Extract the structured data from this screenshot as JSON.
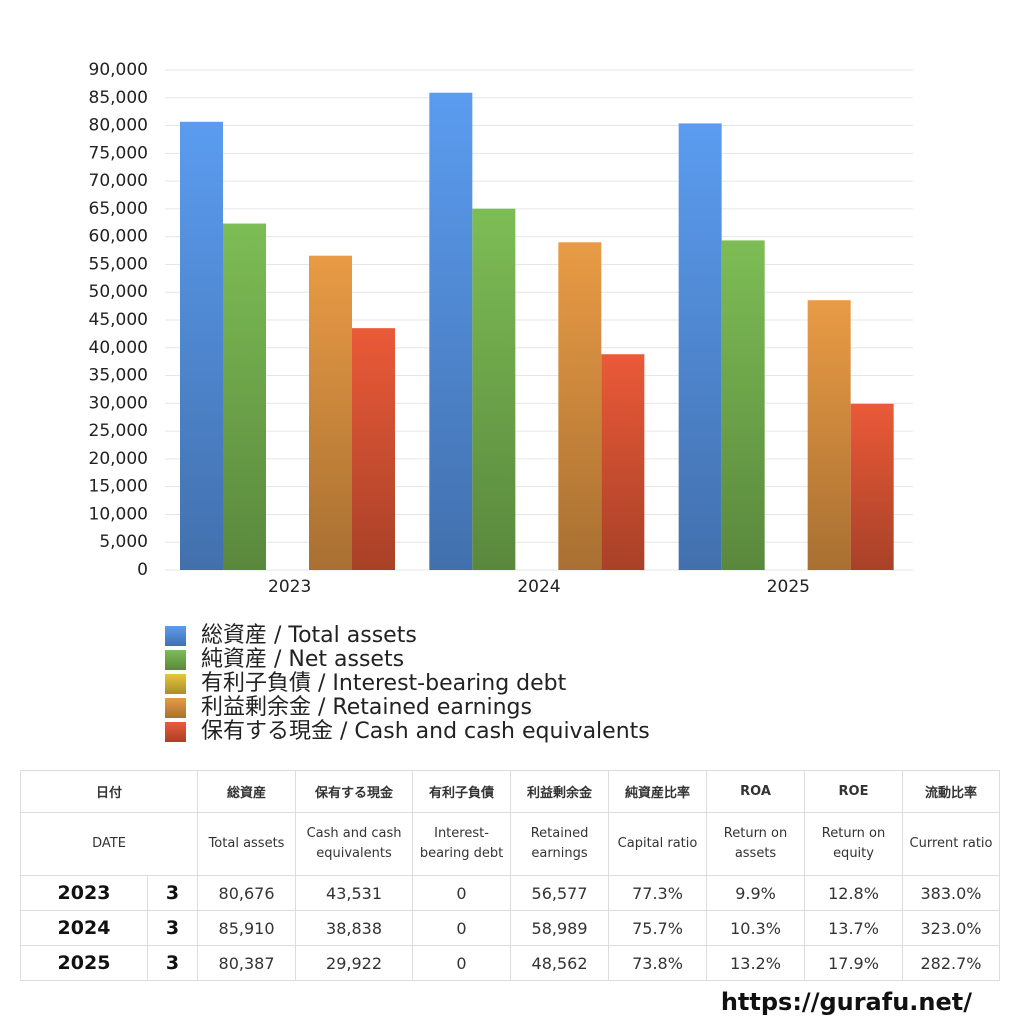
{
  "chart_data": {
    "type": "bar",
    "categories": [
      "2023",
      "2024",
      "2025"
    ],
    "series": [
      {
        "name": "総資産 / Total assets",
        "color": "#5b9cf0",
        "values": [
          80676,
          85910,
          80387
        ]
      },
      {
        "name": "純資産 / Net assets",
        "color": "#7dbd55",
        "values": [
          62362,
          65034,
          59326
        ]
      },
      {
        "name": "有利子負債 / Interest-bearing debt",
        "color": "#e8c53a",
        "values": [
          0,
          0,
          0
        ]
      },
      {
        "name": "利益剰余金 / Retained earnings",
        "color": "#e99b45",
        "values": [
          56577,
          58989,
          48562
        ]
      },
      {
        "name": "保有する現金 /  Cash and cash equivalents",
        "color": "#ea5a38",
        "values": [
          43531,
          38838,
          29922
        ]
      }
    ],
    "ylim": [
      0,
      90000
    ],
    "yticks": [
      0,
      {
        "value": 5000,
        "label": "5,000"
      },
      {
        "value": 10000,
        "label": "10,000"
      },
      {
        "value": 15000,
        "label": "15,000"
      },
      {
        "value": 20000,
        "label": "20,000"
      },
      {
        "value": 25000,
        "label": "25,000"
      },
      {
        "value": 30000,
        "label": "30,000"
      },
      {
        "value": 35000,
        "label": "35,000"
      },
      {
        "value": 40000,
        "label": "40,000"
      },
      {
        "value": 45000,
        "label": "45,000"
      },
      {
        "value": 50000,
        "label": "50,000"
      },
      {
        "value": 55000,
        "label": "55,000"
      },
      {
        "value": 60000,
        "label": "60,000"
      },
      {
        "value": 65000,
        "label": "65,000"
      },
      {
        "value": 70000,
        "label": "70,000"
      },
      {
        "value": 75000,
        "label": "75,000"
      },
      {
        "value": 80000,
        "label": "80,000"
      },
      {
        "value": 85000,
        "label": "85,000"
      },
      {
        "value": 90000,
        "label": "90,000"
      }
    ],
    "grid": true
  },
  "table": {
    "header_jp": [
      "日付",
      "総資産",
      "保有する現金",
      "有利子負債",
      "利益剰余金",
      "純資産比率",
      "ROA",
      "ROE",
      "流動比率"
    ],
    "header_en": [
      "DATE",
      "Total assets",
      "Cash and cash equivalents",
      "Interest-bearing debt",
      "Retained earnings",
      "Capital ratio",
      "Return on assets",
      "Return on equity",
      "Current ratio"
    ],
    "rows": [
      [
        "2023",
        "3",
        "80,676",
        "43,531",
        "0",
        "56,577",
        "77.3%",
        "9.9%",
        "12.8%",
        "383.0%"
      ],
      [
        "2024",
        "3",
        "85,910",
        "38,838",
        "0",
        "58,989",
        "75.7%",
        "10.3%",
        "13.7%",
        "323.0%"
      ],
      [
        "2025",
        "3",
        "80,387",
        "29,922",
        "0",
        "48,562",
        "73.8%",
        "13.2%",
        "17.9%",
        "282.7%"
      ]
    ]
  },
  "footer": "https://gurafu.net/"
}
